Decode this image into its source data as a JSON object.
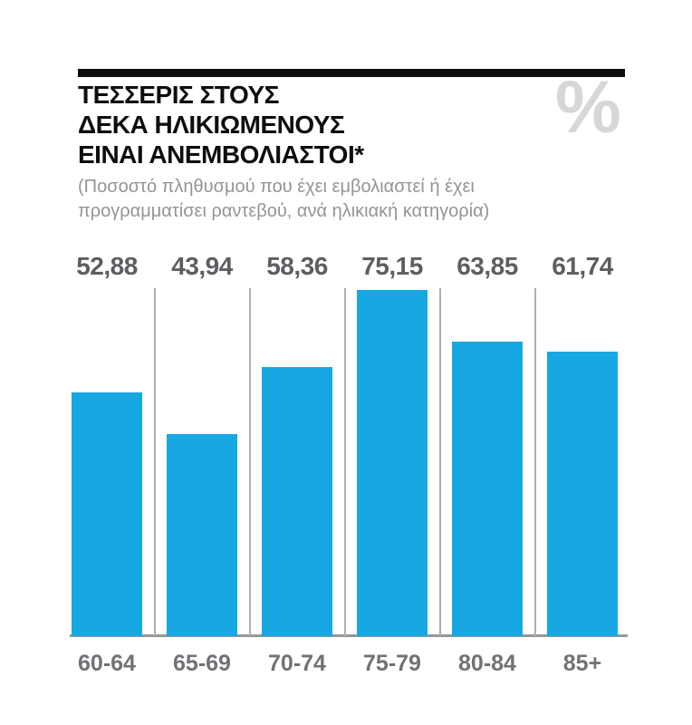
{
  "header": {
    "title_lines": [
      "ΤΕΣΣΕΡΙΣ ΣΤΟΥΣ",
      "ΔΕΚΑ ΗΛΙΚΙΩΜΕΝΟΥΣ",
      "ΕΙΝΑΙ ΑΝΕΜΒΟΛΙΑΣΤΟΙ*"
    ],
    "subtitle_lines": [
      "(Ποσοστό πληθυσμού που έχει εμβολιαστεί ή έχει",
      "προγραμματίσει ραντεβού, ανά ηλικιακή κατηγορία)"
    ],
    "percent_symbol": "%"
  },
  "chart_data": {
    "type": "bar",
    "title": "ΤΕΣΣΕΡΙΣ ΣΤΟΥΣ ΔΕΚΑ ΗΛΙΚΙΩΜΕΝΟΥΣ ΕΙΝΑΙ ΑΝΕΜΒΟΛΙΑΣΤΟΙ*",
    "subtitle": "(Ποσοστό πληθυσμού που έχει εμβολιαστεί ή έχει προγραμματίσει ραντεβού, ανά ηλικιακή κατηγορία)",
    "unit": "%",
    "categories": [
      "60-64",
      "65-69",
      "70-74",
      "75-79",
      "80-84",
      "85+"
    ],
    "values": [
      52.88,
      43.94,
      58.36,
      75.15,
      63.85,
      61.74
    ],
    "value_labels": [
      "52,88",
      "43,94",
      "58,36",
      "75,15",
      "63,85",
      "61,74"
    ],
    "xlabel": "",
    "ylabel": "",
    "ylim": [
      0,
      80
    ],
    "legend": "none",
    "grid": "vertical category separators",
    "bar_color": "#17a8e3"
  },
  "colors": {
    "title": "#0e0e0e",
    "subtitle": "#939497",
    "percent_symbol": "#d7d7d9",
    "bar": "#17a8e3",
    "value_label": "#5d5e62",
    "category_label": "#717276",
    "baseline": "#97979a",
    "separator": "#aeaeb0"
  }
}
